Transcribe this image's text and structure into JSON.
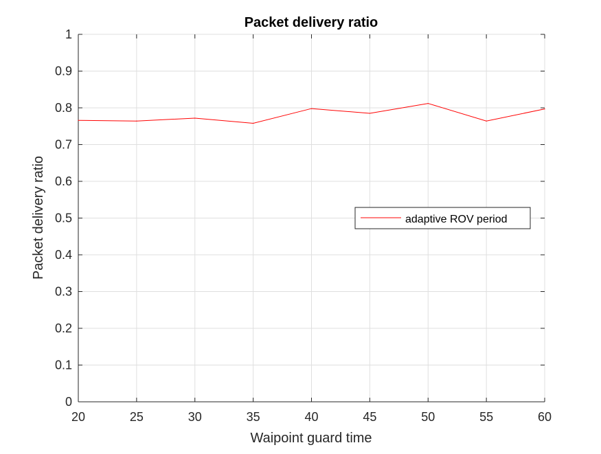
{
  "chart_data": {
    "type": "line",
    "title": "Packet delivery ratio",
    "xlabel": "Waipoint guard time",
    "ylabel": "Packet delivery ratio",
    "xlim": [
      20,
      60
    ],
    "ylim": [
      0,
      1
    ],
    "x_ticks": [
      "20",
      "25",
      "30",
      "35",
      "40",
      "45",
      "50",
      "55",
      "60"
    ],
    "y_ticks": [
      "0",
      "0.1",
      "0.2",
      "0.3",
      "0.4",
      "0.5",
      "0.6",
      "0.7",
      "0.8",
      "0.9",
      "1"
    ],
    "grid": true,
    "legend_position": "right",
    "x": [
      20,
      25,
      30,
      35,
      40,
      45,
      50,
      55,
      60
    ],
    "series": [
      {
        "name": "adaptive ROV period",
        "color": "#ff0000",
        "values": [
          0.766,
          0.764,
          0.772,
          0.758,
          0.798,
          0.785,
          0.812,
          0.764,
          0.797
        ]
      }
    ]
  }
}
